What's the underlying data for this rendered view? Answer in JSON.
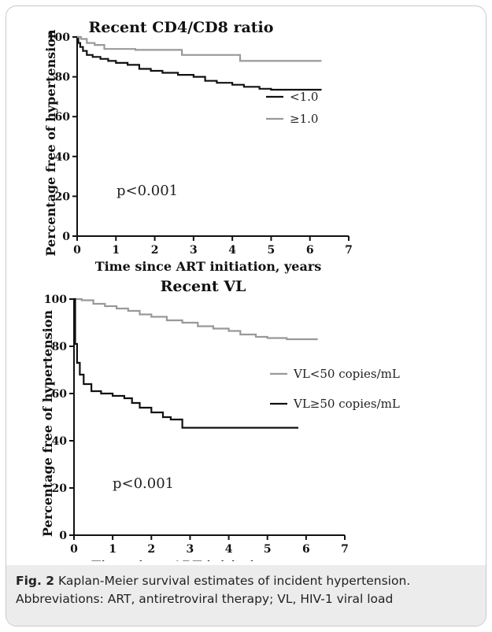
{
  "chart_data": [
    {
      "type": "line",
      "title": "Recent CD4/CD8 ratio",
      "xlabel": "Time since ART initiation, years",
      "ylabel": "Percentage free of hypertension",
      "xlim": [
        0,
        7
      ],
      "ylim": [
        0,
        100
      ],
      "x_ticks": [
        "0",
        "1",
        "2",
        "3",
        "4",
        "5",
        "6",
        "7"
      ],
      "y_ticks": [
        "0",
        "20",
        "40",
        "60",
        "80",
        "100"
      ],
      "legend_position": "right",
      "annotation": "p<0.001",
      "series": [
        {
          "name": "<1.0",
          "color": "#111111",
          "points": [
            [
              0,
              100
            ],
            [
              0.03,
              97
            ],
            [
              0.08,
              95
            ],
            [
              0.15,
              93
            ],
            [
              0.25,
              91
            ],
            [
              0.4,
              90
            ],
            [
              0.6,
              89
            ],
            [
              0.8,
              88
            ],
            [
              1.0,
              87
            ],
            [
              1.3,
              86
            ],
            [
              1.6,
              84
            ],
            [
              1.9,
              83
            ],
            [
              2.2,
              82
            ],
            [
              2.6,
              81
            ],
            [
              3.0,
              80
            ],
            [
              3.3,
              78
            ],
            [
              3.6,
              77
            ],
            [
              4.0,
              76
            ],
            [
              4.3,
              75
            ],
            [
              4.7,
              74
            ],
            [
              5.0,
              73.5
            ],
            [
              5.5,
              73.5
            ],
            [
              6.3,
              73.5
            ]
          ]
        },
        {
          "name": "≥1.0",
          "color": "#999999",
          "points": [
            [
              0,
              100
            ],
            [
              0.1,
              99
            ],
            [
              0.25,
              97
            ],
            [
              0.45,
              96
            ],
            [
              0.7,
              94
            ],
            [
              1.2,
              94
            ],
            [
              1.5,
              93.5
            ],
            [
              2.5,
              93.5
            ],
            [
              2.7,
              91
            ],
            [
              4.0,
              91
            ],
            [
              4.2,
              88
            ],
            [
              6.3,
              88
            ]
          ]
        }
      ]
    },
    {
      "type": "line",
      "title": "Recent VL",
      "xlabel": "Time since ART initiation, years",
      "ylabel": "Percentage free of hypertension",
      "xlim": [
        0,
        7
      ],
      "ylim": [
        0,
        100
      ],
      "x_ticks": [
        "0",
        "1",
        "2",
        "3",
        "4",
        "5",
        "6",
        "7"
      ],
      "y_ticks": [
        "0",
        "20",
        "40",
        "60",
        "80",
        "100"
      ],
      "legend_position": "right",
      "annotation": "p<0.001",
      "series": [
        {
          "name": "VL<50 copies/mL",
          "color": "#999999",
          "points": [
            [
              0,
              100
            ],
            [
              0.2,
              99.5
            ],
            [
              0.5,
              98
            ],
            [
              0.8,
              97
            ],
            [
              1.1,
              96
            ],
            [
              1.4,
              95
            ],
            [
              1.7,
              93.5
            ],
            [
              2.0,
              92.5
            ],
            [
              2.4,
              91
            ],
            [
              2.8,
              90
            ],
            [
              3.2,
              88.5
            ],
            [
              3.6,
              87.5
            ],
            [
              4.0,
              86.5
            ],
            [
              4.3,
              85
            ],
            [
              4.7,
              84
            ],
            [
              5.0,
              83.5
            ],
            [
              5.5,
              83
            ],
            [
              6.3,
              83
            ]
          ]
        },
        {
          "name": "VL≥50 copies/mL",
          "color": "#111111",
          "points": [
            [
              0,
              100
            ],
            [
              0.03,
              81
            ],
            [
              0.08,
              73
            ],
            [
              0.15,
              68
            ],
            [
              0.25,
              64
            ],
            [
              0.45,
              61
            ],
            [
              0.7,
              60
            ],
            [
              1.0,
              59
            ],
            [
              1.3,
              58
            ],
            [
              1.5,
              56
            ],
            [
              1.7,
              54
            ],
            [
              2.0,
              52
            ],
            [
              2.3,
              50
            ],
            [
              2.5,
              49
            ],
            [
              2.75,
              49
            ],
            [
              2.8,
              45.5
            ],
            [
              5.8,
              45.5
            ]
          ]
        }
      ]
    }
  ],
  "caption": {
    "label": "Fig. 2",
    "text": " Kaplan-Meier survival estimates of incident hypertension.",
    "abbrev": "Abbreviations: ART, antiretroviral therapy; VL, HIV-1 viral load"
  }
}
